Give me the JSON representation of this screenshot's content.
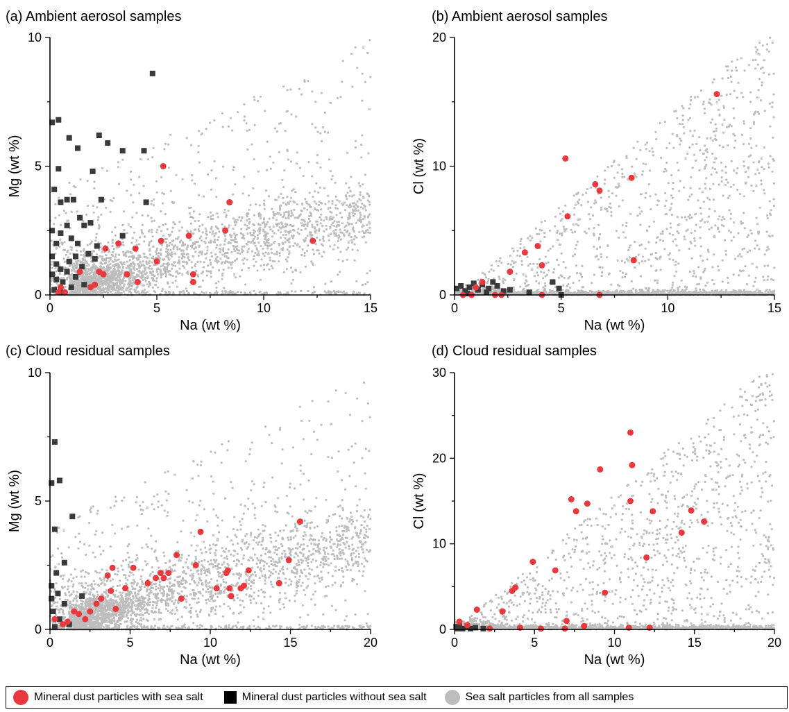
{
  "colors": {
    "mineral_with_salt": "#e8393f",
    "mineral_without_salt": "#3a3a3a",
    "sea_salt": "#bdbdbd"
  },
  "legend": [
    {
      "label": "Mineral dust particles with sea salt",
      "marker": "red-circle"
    },
    {
      "label": "Mineral dust particles without sea salt",
      "marker": "black-square"
    },
    {
      "label": "Sea salt particles from all samples",
      "marker": "gray-circle"
    }
  ],
  "chart_data": [
    {
      "type": "scatter",
      "panel": "(a)",
      "title": "Ambient aerosol samples",
      "xlabel": "Na (wt %)",
      "ylabel": "Mg (wt %)",
      "xlim": [
        0,
        15
      ],
      "ylim": [
        0,
        10
      ],
      "xticks": [
        "0",
        "5",
        "10",
        "15"
      ],
      "yticks": [
        "0",
        "5",
        "10"
      ],
      "series": [
        {
          "name": "Mineral dust particles with sea salt",
          "marker": "circle",
          "points": [
            [
              0.5,
              0.3
            ],
            [
              0.7,
              0.1
            ],
            [
              0.4,
              0.1
            ],
            [
              1.4,
              0.9
            ],
            [
              1.9,
              0.3
            ],
            [
              2.1,
              0.4
            ],
            [
              2.3,
              0.9
            ],
            [
              2.5,
              0.8
            ],
            [
              2.6,
              1.8
            ],
            [
              3.2,
              2.0
            ],
            [
              3.6,
              0.8
            ],
            [
              4.1,
              0.5
            ],
            [
              4.0,
              1.8
            ],
            [
              5.0,
              1.3
            ],
            [
              5.2,
              2.1
            ],
            [
              5.3,
              5.0
            ],
            [
              6.5,
              2.3
            ],
            [
              6.7,
              0.8
            ],
            [
              6.7,
              0.5
            ],
            [
              8.2,
              2.5
            ],
            [
              8.4,
              3.6
            ],
            [
              12.3,
              2.1
            ]
          ]
        },
        {
          "name": "Mineral dust particles without sea salt",
          "marker": "square",
          "points": [
            [
              0.1,
              6.7
            ],
            [
              0.4,
              6.8
            ],
            [
              0.4,
              4.9
            ],
            [
              0.9,
              6.1
            ],
            [
              1.3,
              5.7
            ],
            [
              2.0,
              4.8
            ],
            [
              2.3,
              6.2
            ],
            [
              2.7,
              5.9
            ],
            [
              3.4,
              5.6
            ],
            [
              4.4,
              5.6
            ],
            [
              4.8,
              8.6
            ],
            [
              4.5,
              3.6
            ],
            [
              0.2,
              4.1
            ],
            [
              0.5,
              3.6
            ],
            [
              0.8,
              3.7
            ],
            [
              1.1,
              3.7
            ],
            [
              1.4,
              3.0
            ],
            [
              1.6,
              2.7
            ],
            [
              1.9,
              2.8
            ],
            [
              2.2,
              1.9
            ],
            [
              2.4,
              3.7
            ],
            [
              0.1,
              2.5
            ],
            [
              0.3,
              2.0
            ],
            [
              0.5,
              2.4
            ],
            [
              0.8,
              2.7
            ],
            [
              1.0,
              2.2
            ],
            [
              1.3,
              2.0
            ],
            [
              1.8,
              1.6
            ],
            [
              0.1,
              1.5
            ],
            [
              0.3,
              1.2
            ],
            [
              0.5,
              1.0
            ],
            [
              0.9,
              1.3
            ],
            [
              1.2,
              1.5
            ],
            [
              1.5,
              1.1
            ],
            [
              2.1,
              1.4
            ],
            [
              3.4,
              2.3
            ],
            [
              0.1,
              0.8
            ],
            [
              0.3,
              0.6
            ],
            [
              0.6,
              0.5
            ],
            [
              0.2,
              0.2
            ],
            [
              0.5,
              0.1
            ],
            [
              1.0,
              0.3
            ],
            [
              1.6,
              0.4
            ],
            [
              0.8,
              0.9
            ],
            [
              1.2,
              0.7
            ]
          ]
        },
        {
          "name": "Sea salt particles from all samples",
          "marker": "dot",
          "count": 3000,
          "generator": "A"
        }
      ]
    },
    {
      "type": "scatter",
      "panel": "(b)",
      "title": "Ambient aerosol samples",
      "xlabel": "Na (wt %)",
      "ylabel": "Cl (wt %)",
      "xlim": [
        0,
        15
      ],
      "ylim": [
        0,
        20
      ],
      "xticks": [
        "0",
        "5",
        "10",
        "15"
      ],
      "yticks": [
        "0",
        "10",
        "20"
      ],
      "series": [
        {
          "name": "Mineral dust particles with sea salt",
          "marker": "circle",
          "points": [
            [
              0.4,
              0.0
            ],
            [
              0.8,
              0.0
            ],
            [
              1.0,
              0.6
            ],
            [
              1.3,
              1.0
            ],
            [
              1.9,
              0.0
            ],
            [
              2.2,
              0.0
            ],
            [
              2.6,
              1.8
            ],
            [
              3.3,
              3.3
            ],
            [
              3.9,
              3.8
            ],
            [
              4.1,
              2.3
            ],
            [
              4.1,
              0.0
            ],
            [
              5.2,
              10.6
            ],
            [
              5.3,
              6.1
            ],
            [
              6.6,
              8.6
            ],
            [
              6.8,
              8.1
            ],
            [
              6.8,
              0.0
            ],
            [
              8.3,
              9.1
            ],
            [
              8.4,
              2.7
            ],
            [
              12.3,
              15.6
            ]
          ]
        },
        {
          "name": "Mineral dust particles without sea salt",
          "marker": "square",
          "points": [
            [
              0.1,
              0.5
            ],
            [
              0.3,
              0.7
            ],
            [
              0.5,
              0.3
            ],
            [
              0.7,
              0.6
            ],
            [
              0.9,
              0.9
            ],
            [
              1.1,
              0.4
            ],
            [
              1.3,
              0.8
            ],
            [
              1.6,
              0.5
            ],
            [
              1.8,
              1.0
            ],
            [
              2.0,
              0.7
            ],
            [
              2.3,
              0.3
            ],
            [
              3.5,
              0.2
            ],
            [
              4.6,
              1.0
            ],
            [
              4.9,
              0.5
            ],
            [
              5.0,
              0.0
            ],
            [
              0.6,
              0.1
            ],
            [
              1.5,
              0.2
            ],
            [
              2.6,
              0.4
            ]
          ]
        },
        {
          "name": "Sea salt particles from all samples",
          "marker": "dot",
          "count": 2300,
          "generator": "B"
        }
      ]
    },
    {
      "type": "scatter",
      "panel": "(c)",
      "title": "Cloud residual samples",
      "xlabel": "Na (wt %)",
      "ylabel": "Mg (wt %)",
      "xlim": [
        0,
        20
      ],
      "ylim": [
        0,
        10
      ],
      "xticks": [
        "0",
        "5",
        "10",
        "15",
        "20"
      ],
      "yticks": [
        "0",
        "5",
        "10"
      ],
      "series": [
        {
          "name": "Mineral dust particles with sea salt",
          "marker": "circle",
          "points": [
            [
              0.3,
              0.4
            ],
            [
              0.8,
              0.2
            ],
            [
              1.1,
              0.3
            ],
            [
              1.5,
              0.7
            ],
            [
              1.8,
              0.6
            ],
            [
              2.2,
              0.4
            ],
            [
              2.5,
              0.7
            ],
            [
              2.9,
              1.0
            ],
            [
              3.2,
              1.2
            ],
            [
              3.6,
              2.1
            ],
            [
              3.9,
              2.4
            ],
            [
              3.8,
              1.5
            ],
            [
              4.1,
              0.8
            ],
            [
              4.7,
              1.6
            ],
            [
              5.2,
              2.4
            ],
            [
              6.1,
              1.8
            ],
            [
              6.6,
              2.0
            ],
            [
              6.9,
              2.2
            ],
            [
              7.1,
              2.0
            ],
            [
              7.4,
              2.2
            ],
            [
              7.9,
              2.9
            ],
            [
              8.2,
              1.2
            ],
            [
              9.1,
              2.5
            ],
            [
              9.4,
              3.8
            ],
            [
              10.4,
              1.6
            ],
            [
              11.0,
              2.2
            ],
            [
              11.1,
              2.3
            ],
            [
              11.2,
              1.6
            ],
            [
              11.3,
              1.3
            ],
            [
              11.9,
              1.6
            ],
            [
              12.1,
              1.7
            ],
            [
              12.4,
              2.3
            ],
            [
              14.3,
              1.8
            ],
            [
              14.9,
              2.7
            ],
            [
              15.6,
              4.2
            ]
          ]
        },
        {
          "name": "Mineral dust particles without sea salt",
          "marker": "square",
          "points": [
            [
              0.3,
              7.3
            ],
            [
              0.6,
              5.8
            ],
            [
              0.1,
              5.7
            ],
            [
              1.4,
              4.4
            ],
            [
              0.3,
              3.9
            ],
            [
              0.9,
              2.6
            ],
            [
              0.4,
              2.2
            ],
            [
              0.1,
              1.7
            ],
            [
              0.5,
              1.4
            ],
            [
              0.9,
              1.0
            ],
            [
              2.0,
              1.3
            ],
            [
              0.2,
              0.7
            ],
            [
              0.6,
              0.4
            ],
            [
              1.2,
              0.2
            ],
            [
              0.3,
              0.1
            ],
            [
              0.1,
              1.2
            ]
          ]
        },
        {
          "name": "Sea salt particles from all samples",
          "marker": "dot",
          "count": 3100,
          "generator": "C"
        }
      ]
    },
    {
      "type": "scatter",
      "panel": "(d)",
      "title": "Cloud residual samples",
      "xlabel": "Na (wt %)",
      "ylabel": "Cl (wt %)",
      "xlim": [
        0,
        20
      ],
      "ylim": [
        0,
        30
      ],
      "xticks": [
        "0",
        "5",
        "10",
        "15",
        "20"
      ],
      "yticks": [
        "0",
        "10",
        "20",
        "30"
      ],
      "series": [
        {
          "name": "Mineral dust particles with sea salt",
          "marker": "circle",
          "points": [
            [
              0.3,
              0.9
            ],
            [
              0.8,
              0.5
            ],
            [
              1.4,
              2.3
            ],
            [
              2.2,
              0.1
            ],
            [
              3.0,
              2.1
            ],
            [
              3.6,
              4.5
            ],
            [
              3.8,
              4.9
            ],
            [
              4.1,
              0.2
            ],
            [
              4.9,
              7.9
            ],
            [
              5.4,
              0.1
            ],
            [
              6.3,
              6.9
            ],
            [
              6.9,
              0.1
            ],
            [
              7.0,
              1.0
            ],
            [
              7.3,
              15.2
            ],
            [
              7.6,
              13.8
            ],
            [
              8.1,
              0.4
            ],
            [
              8.3,
              14.7
            ],
            [
              9.1,
              18.7
            ],
            [
              9.4,
              4.3
            ],
            [
              10.9,
              0.2
            ],
            [
              11.0,
              23.0
            ],
            [
              11.0,
              15.0
            ],
            [
              11.1,
              19.2
            ],
            [
              12.0,
              8.4
            ],
            [
              12.2,
              0.2
            ],
            [
              12.4,
              13.8
            ],
            [
              14.2,
              11.3
            ],
            [
              14.8,
              13.9
            ],
            [
              15.6,
              12.6
            ]
          ]
        },
        {
          "name": "Mineral dust particles without sea salt",
          "marker": "square",
          "points": [
            [
              0.1,
              0.3
            ],
            [
              0.3,
              0.5
            ],
            [
              0.5,
              0.1
            ],
            [
              0.8,
              0.4
            ],
            [
              1.0,
              0.1
            ],
            [
              1.3,
              0.2
            ],
            [
              1.8,
              0.1
            ],
            [
              0.2,
              0.1
            ]
          ]
        },
        {
          "name": "Sea salt particles from all samples",
          "marker": "dot",
          "count": 2400,
          "generator": "D"
        }
      ]
    }
  ]
}
